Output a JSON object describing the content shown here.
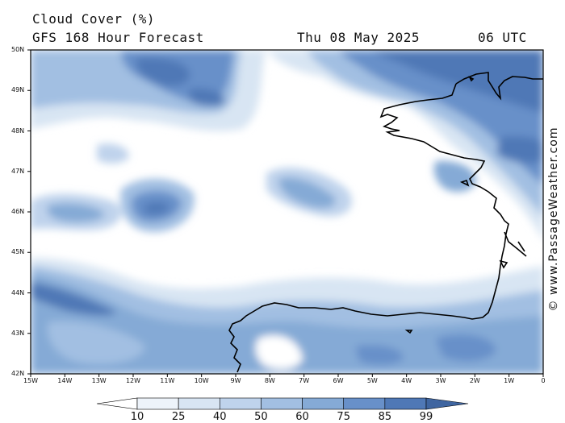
{
  "header": {
    "title": "Cloud Cover (%)",
    "subtitle": "GFS 168 Hour Forecast",
    "date": "Thu 08 May 2025",
    "time": "06 UTC"
  },
  "credit": "© www.PassageWeather.com",
  "map": {
    "lat_labels": [
      "50N",
      "49N",
      "48N",
      "47N",
      "46N",
      "45N",
      "44N",
      "43N",
      "42N"
    ],
    "lon_labels": [
      "15W",
      "14W",
      "13W",
      "12W",
      "11W",
      "10W",
      "9W",
      "8W",
      "7W",
      "6W",
      "5W",
      "4W",
      "3W",
      "2W",
      "1W",
      "0"
    ]
  },
  "colorbar": {
    "labels": [
      "10",
      "25",
      "40",
      "50",
      "60",
      "75",
      "85",
      "99"
    ],
    "colors": [
      "#ffffff",
      "#edf3fa",
      "#d8e5f3",
      "#bfd3ec",
      "#a2bfe2",
      "#85aad6",
      "#6890c9",
      "#4f78b6",
      "#3f65a0"
    ]
  }
}
